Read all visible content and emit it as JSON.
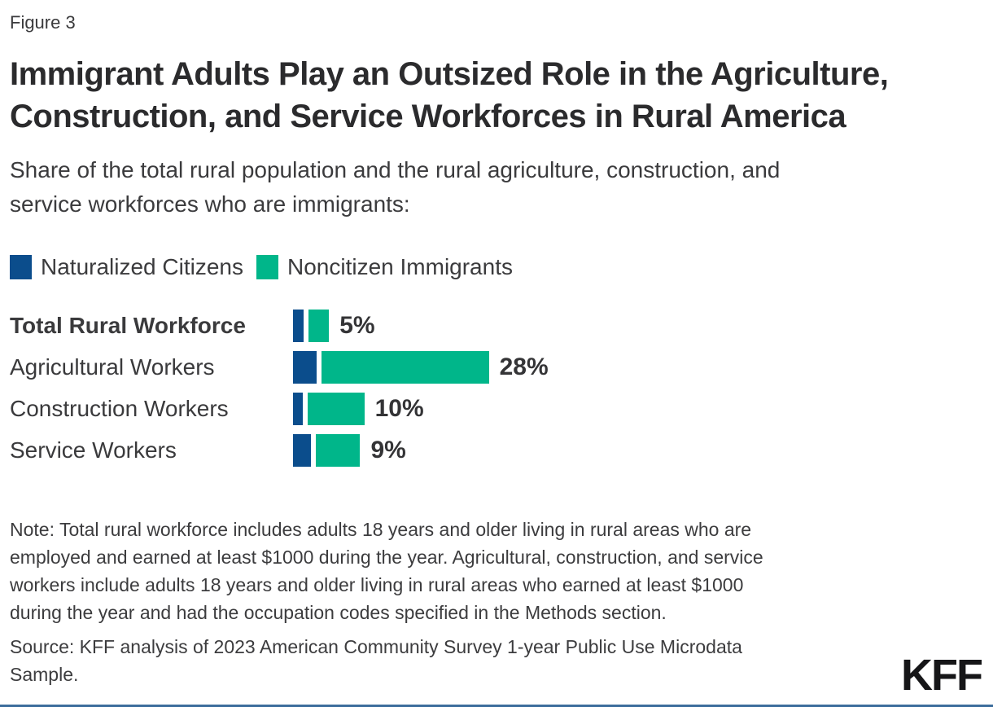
{
  "figure_label": "Figure 3",
  "title_lines": [
    "Immigrant Adults Play an Outsized Role in the Agriculture,",
    "Construction, and Service Workforces in Rural America"
  ],
  "subtitle_lines": [
    "Share of the total rural population and the rural agriculture, construction, and",
    "service workforces who are immigrants:"
  ],
  "colors": {
    "naturalized_blue": "#0b4d8c",
    "noncitizen_teal": "#00b68a",
    "footer_line_blue": "#3c6d9c",
    "title_text": "#2b2b2d",
    "body_text": "#3b3b3d"
  },
  "legend": {
    "items": [
      {
        "label": "Naturalized Citizens",
        "color_key": "naturalized_blue",
        "icon": "naturalized-citizens-swatch-icon"
      },
      {
        "label": "Noncitizen Immigrants",
        "color_key": "noncitizen_teal",
        "icon": "noncitizen-immigrants-swatch-icon"
      }
    ]
  },
  "chart_data": {
    "type": "bar",
    "orientation": "horizontal",
    "stacked": true,
    "axis_visible": false,
    "grid": false,
    "legend_position": "top",
    "categories": [
      "Total Rural Workforce",
      "Agricultural Workers",
      "Construction Workers",
      "Service Workers"
    ],
    "category_bold": [
      true,
      false,
      false,
      false
    ],
    "series": [
      {
        "name": "Naturalized Citizens",
        "values_pct_estimated": [
          1.5,
          3.4,
          1.4,
          2.6
        ]
      },
      {
        "name": "Noncitizen Immigrants",
        "values_pct_estimated": [
          3.0,
          24.2,
          8.2,
          6.4
        ]
      }
    ],
    "totals_pct": [
      5,
      28,
      10,
      9
    ],
    "total_labels": [
      "5%",
      "28%",
      "10%",
      "9%"
    ],
    "xlim": [
      0,
      100
    ]
  },
  "note_lines": [
    "Note: Total rural workforce includes adults 18 years and older living in rural areas who are",
    "employed and earned at least $1000 during the year. Agricultural, construction, and service",
    "workers include adults 18 years and older living in rural areas who earned at least $1000",
    "during the year and had the occupation codes specified in the Methods section."
  ],
  "source_lines": [
    "Source: KFF analysis of 2023 American Community Survey 1-year Public Use Microdata",
    "Sample."
  ],
  "logo_text": "KFF"
}
